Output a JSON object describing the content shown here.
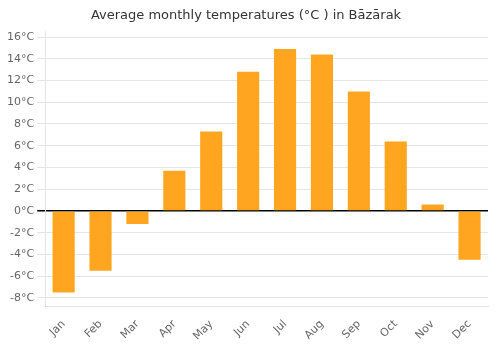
{
  "chart_data": {
    "type": "bar",
    "title": "Average monthly temperatures (°C ) in Bāzārak",
    "categories": [
      "Jan",
      "Feb",
      "Mar",
      "Apr",
      "May",
      "Jun",
      "Jul",
      "Aug",
      "Sep",
      "Oct",
      "Nov",
      "Dec"
    ],
    "values": [
      -7.5,
      -5.5,
      -1.2,
      3.7,
      7.3,
      12.8,
      14.9,
      14.4,
      11.0,
      6.4,
      0.6,
      -4.5
    ],
    "color": "#FFA520",
    "ylim": [
      -8.8,
      16.5
    ],
    "yticks": [
      {
        "value": -8,
        "label": "-8°C"
      },
      {
        "value": -6,
        "label": "-6°C"
      },
      {
        "value": -4,
        "label": "-4°C"
      },
      {
        "value": -2,
        "label": "-2°C"
      },
      {
        "value": 0,
        "label": "0°C"
      },
      {
        "value": 2,
        "label": "2°C"
      },
      {
        "value": 4,
        "label": "4°C"
      },
      {
        "value": 6,
        "label": "6°C"
      },
      {
        "value": 8,
        "label": "8°C"
      },
      {
        "value": 10,
        "label": "10°C"
      },
      {
        "value": 12,
        "label": "12°C"
      },
      {
        "value": 14,
        "label": "14°C"
      },
      {
        "value": 16,
        "label": "16°C"
      }
    ],
    "grid": true
  }
}
